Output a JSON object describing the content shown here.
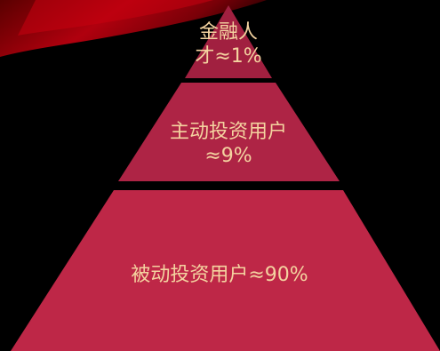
{
  "colors": {
    "background": "#000000",
    "tier_top": "#A12040",
    "tier_middle": "#AE2445",
    "tier_bottom": "#BE2747",
    "label_text": "#F4D3A0",
    "swoosh_dark": "#4A0000",
    "swoosh_bright": "#C80010"
  },
  "pyramid": {
    "top": {
      "line1": "金融人",
      "line2": "才≈1%"
    },
    "middle": {
      "line1": "主动投资用户",
      "line2": "≈9%"
    },
    "bottom": {
      "line1": "被动投资用户≈90%"
    }
  }
}
